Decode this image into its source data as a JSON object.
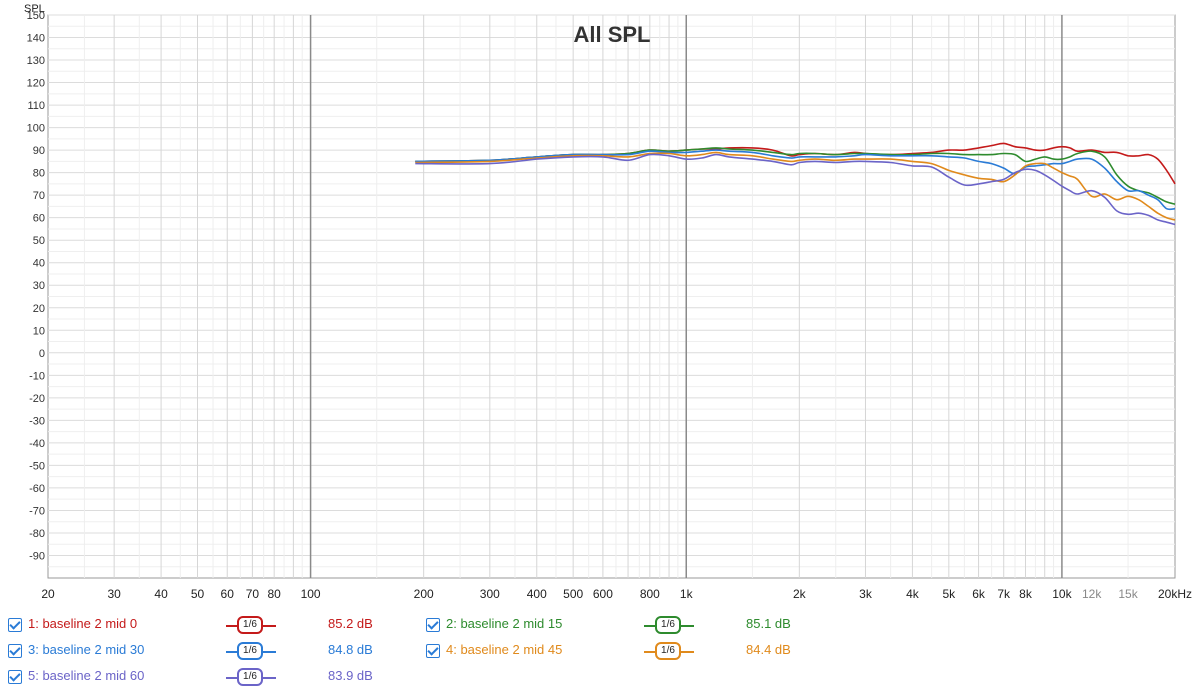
{
  "chart_data": {
    "type": "line",
    "title": "All SPL",
    "ylabel": "SPL",
    "xscale": "log",
    "xlim": [
      20,
      20000
    ],
    "ylim": [
      -100,
      150
    ],
    "yticks": [
      "150",
      "140",
      "130",
      "120",
      "110",
      "100",
      "90",
      "80",
      "70",
      "60",
      "50",
      "40",
      "30",
      "20",
      "10",
      "0",
      "-10",
      "-20",
      "-30",
      "-40",
      "-50",
      "-60",
      "-70",
      "-80",
      "-90"
    ],
    "xticks": [
      {
        "value": 20,
        "label": "20"
      },
      {
        "value": 30,
        "label": "30"
      },
      {
        "value": 40,
        "label": "40"
      },
      {
        "value": 50,
        "label": "50"
      },
      {
        "value": 60,
        "label": "60"
      },
      {
        "value": 70,
        "label": "70"
      },
      {
        "value": 80,
        "label": "80"
      },
      {
        "value": 100,
        "label": "100"
      },
      {
        "value": 200,
        "label": "200"
      },
      {
        "value": 300,
        "label": "300"
      },
      {
        "value": 400,
        "label": "400"
      },
      {
        "value": 500,
        "label": "500"
      },
      {
        "value": 600,
        "label": "600"
      },
      {
        "value": 800,
        "label": "800"
      },
      {
        "value": 1000,
        "label": "1k"
      },
      {
        "value": 2000,
        "label": "2k"
      },
      {
        "value": 3000,
        "label": "3k"
      },
      {
        "value": 4000,
        "label": "4k"
      },
      {
        "value": 5000,
        "label": "5k"
      },
      {
        "value": 6000,
        "label": "6k"
      },
      {
        "value": 7000,
        "label": "7k"
      },
      {
        "value": 8000,
        "label": "8k"
      },
      {
        "value": 10000,
        "label": "10k"
      },
      {
        "value": 12000,
        "label": "12k"
      },
      {
        "value": 15000,
        "label": "15k"
      },
      {
        "value": 20000,
        "label": "20kHz"
      }
    ],
    "grid": true,
    "series": [
      {
        "name": "1: baseline 2 mid 0",
        "color": "#c41a1a",
        "x": [
          190,
          300,
          400,
          500,
          600,
          700,
          800,
          900,
          1000,
          1100,
          1200,
          1300,
          1500,
          1700,
          1900,
          2000,
          2200,
          2500,
          2800,
          3000,
          3500,
          4000,
          4500,
          5000,
          5500,
          6000,
          6500,
          7000,
          7500,
          8000,
          8500,
          9000,
          9500,
          10000,
          10500,
          11000,
          12000,
          13000,
          14000,
          15000,
          16000,
          17000,
          18000,
          19000,
          20000
        ],
        "y": [
          85,
          85.5,
          87,
          88,
          88,
          88.5,
          90,
          89.5,
          90,
          90.5,
          90.5,
          91,
          91,
          90,
          87.5,
          88,
          88.5,
          88,
          89,
          88.5,
          88,
          88.5,
          89,
          90,
          90,
          91,
          92,
          93,
          91.5,
          91,
          90,
          90,
          91,
          91.5,
          91,
          89.5,
          90,
          89,
          89,
          87.5,
          87.5,
          88,
          86,
          81,
          75
        ]
      },
      {
        "name": "2: baseline 2 mid 15",
        "color": "#2e8b2e",
        "x": [
          190,
          300,
          400,
          500,
          600,
          700,
          800,
          900,
          1000,
          1100,
          1200,
          1300,
          1500,
          1700,
          1900,
          2000,
          2200,
          2500,
          2800,
          3000,
          3500,
          4000,
          4500,
          5000,
          5500,
          6000,
          6500,
          7000,
          7500,
          8000,
          8500,
          9000,
          9500,
          10000,
          10500,
          11000,
          12000,
          13000,
          14000,
          15000,
          16000,
          17000,
          18000,
          19000,
          20000
        ],
        "y": [
          85,
          85.5,
          87,
          88,
          88,
          88.5,
          90,
          89.5,
          90,
          90.5,
          91,
          90.5,
          90,
          89,
          88,
          88.5,
          88.5,
          88,
          88.5,
          88.5,
          88,
          88,
          88.5,
          88.5,
          88,
          88,
          88,
          88.5,
          88,
          85,
          86,
          87,
          86,
          86,
          87,
          88.5,
          89.5,
          87,
          79,
          74,
          72,
          71,
          69,
          67,
          66
        ]
      },
      {
        "name": "3: baseline 2 mid 30",
        "color": "#2a7bd6",
        "x": [
          190,
          300,
          400,
          500,
          600,
          700,
          800,
          900,
          1000,
          1100,
          1200,
          1300,
          1500,
          1700,
          1900,
          2000,
          2200,
          2500,
          2800,
          3000,
          3500,
          4000,
          4500,
          5000,
          5500,
          6000,
          6500,
          7000,
          7500,
          8000,
          8500,
          9000,
          9500,
          10000,
          10500,
          11000,
          12000,
          13000,
          14000,
          15000,
          16000,
          17000,
          18000,
          19000,
          20000
        ],
        "y": [
          85,
          85.5,
          87,
          88,
          88,
          88,
          89.5,
          89,
          89,
          89.5,
          90,
          89.5,
          89,
          87.5,
          86.5,
          87,
          87,
          87,
          87.5,
          88,
          87.5,
          87.5,
          87.5,
          87,
          86.5,
          85,
          84,
          82,
          79.5,
          82.5,
          83,
          83.5,
          84,
          84,
          85,
          86,
          86,
          82,
          76,
          72,
          72,
          70,
          68,
          64,
          64
        ]
      },
      {
        "name": "4: baseline 2 mid 45",
        "color": "#e08a1c",
        "x": [
          190,
          300,
          400,
          500,
          600,
          700,
          800,
          900,
          1000,
          1100,
          1200,
          1300,
          1500,
          1700,
          1900,
          2000,
          2200,
          2500,
          2800,
          3000,
          3500,
          4000,
          4500,
          5000,
          5500,
          6000,
          6500,
          7000,
          7500,
          8000,
          8500,
          9000,
          9500,
          10000,
          10500,
          11000,
          12000,
          13000,
          14000,
          15000,
          16000,
          17000,
          18000,
          19000,
          20000
        ],
        "y": [
          84.5,
          85,
          86.5,
          87.5,
          87.5,
          87,
          88.5,
          88.5,
          87.5,
          88,
          89,
          88,
          87.5,
          86,
          85,
          85.5,
          86,
          85.5,
          86,
          86,
          86,
          85,
          84,
          81,
          79,
          77.5,
          77,
          76,
          79,
          83,
          84,
          84,
          82,
          80,
          78.5,
          77,
          69.5,
          70.5,
          68,
          69.5,
          68,
          65,
          62,
          60,
          59
        ]
      },
      {
        "name": "5: baseline 2 mid 60",
        "color": "#6b64c8",
        "x": [
          190,
          300,
          400,
          500,
          600,
          700,
          800,
          900,
          1000,
          1100,
          1200,
          1300,
          1500,
          1700,
          1900,
          2000,
          2200,
          2500,
          2800,
          3000,
          3500,
          4000,
          4500,
          5000,
          5500,
          6000,
          6500,
          7000,
          7500,
          8000,
          8500,
          9000,
          9500,
          10000,
          10500,
          11000,
          12000,
          13000,
          14000,
          15000,
          16000,
          17000,
          18000,
          19000,
          20000
        ],
        "y": [
          84,
          84,
          86,
          87,
          87,
          85.5,
          88,
          87.5,
          86,
          86.5,
          88,
          87,
          86,
          85,
          83.5,
          84.5,
          85,
          84.5,
          85,
          85,
          84.5,
          83,
          82.5,
          78,
          74.5,
          75,
          76,
          77,
          80,
          81.5,
          81,
          79,
          76.5,
          74,
          72,
          70.5,
          72,
          69,
          63,
          61.5,
          62,
          61,
          59,
          58,
          57
        ]
      }
    ]
  },
  "legend": [
    {
      "checked": true,
      "label": "1: baseline 2 mid 0",
      "color": "#c41a1a",
      "smoothing": "1/6",
      "value": "85.2 dB"
    },
    {
      "checked": true,
      "label": "2: baseline 2 mid 15",
      "color": "#2e8b2e",
      "smoothing": "1/6",
      "value": "85.1 dB"
    },
    {
      "checked": true,
      "label": "3: baseline 2 mid 30",
      "color": "#2a7bd6",
      "smoothing": "1/6",
      "value": "84.8 dB"
    },
    {
      "checked": true,
      "label": "4: baseline 2 mid 45",
      "color": "#e08a1c",
      "smoothing": "1/6",
      "value": "84.4 dB"
    },
    {
      "checked": true,
      "label": "5: baseline 2 mid 60",
      "color": "#6b64c8",
      "smoothing": "1/6",
      "value": "83.9 dB"
    }
  ]
}
